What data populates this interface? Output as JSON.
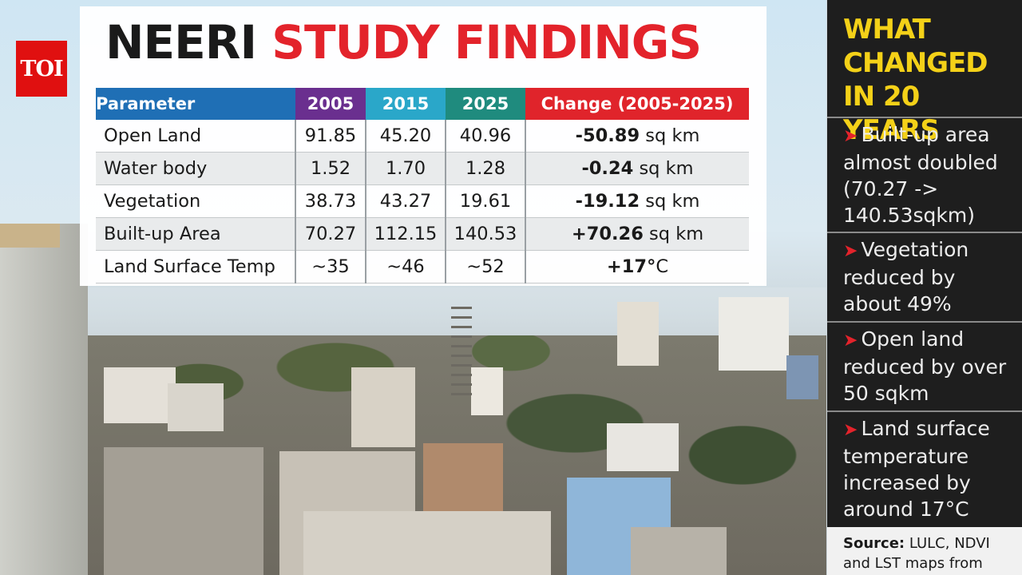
{
  "brand": {
    "logo_text": "TOI"
  },
  "title": {
    "part1": "NEERI",
    "part2": "STUDY FINDINGS"
  },
  "chart_data": {
    "type": "table",
    "columns": [
      "Parameter",
      "2005",
      "2015",
      "2025",
      "Change (2005-2025)"
    ],
    "rows": [
      {
        "parameter": "Open Land",
        "y2005": "91.85",
        "y2015": "45.20",
        "y2025": "40.96",
        "change_value": "-50.89",
        "change_unit": "sq km"
      },
      {
        "parameter": "Water body",
        "y2005": "1.52",
        "y2015": "1.70",
        "y2025": "1.28",
        "change_value": "-0.24",
        "change_unit": "sq km"
      },
      {
        "parameter": "Vegetation",
        "y2005": "38.73",
        "y2015": "43.27",
        "y2025": "19.61",
        "change_value": "-19.12",
        "change_unit": "sq km"
      },
      {
        "parameter": "Built-up Area",
        "y2005": "70.27",
        "y2015": "112.15",
        "y2025": "140.53",
        "change_value": "+70.26",
        "change_unit": "sq km"
      },
      {
        "parameter": "Land Surface Temp",
        "y2005": "~35",
        "y2015": "~46",
        "y2025": "~52",
        "change_value": "+17°",
        "change_unit": "C"
      }
    ],
    "header_colors": {
      "parameter": "#1f6fb5",
      "2005": "#6a2f8f",
      "2015": "#2aa7c9",
      "2025": "#1f8b7e",
      "change": "#e0242b"
    }
  },
  "panel": {
    "title": "WHAT\nCHANGED\nIN 20 YEARS",
    "items": [
      "Built-up area almost doubled (70.27 -> 140.53sqkm)",
      "Vegetation reduced by about 49%",
      "Open land reduced by over 50 sqkm",
      "Land surface temperature increased by around 17°C"
    ],
    "source_label": "Source:",
    "source_text": "LULC, NDVI and LST maps from"
  },
  "colors": {
    "title_dark": "#1a1a1a",
    "title_red": "#e3232b",
    "panel_bg": "#1e1e1e",
    "panel_title": "#f4d118",
    "bullet": "#e3232b"
  }
}
